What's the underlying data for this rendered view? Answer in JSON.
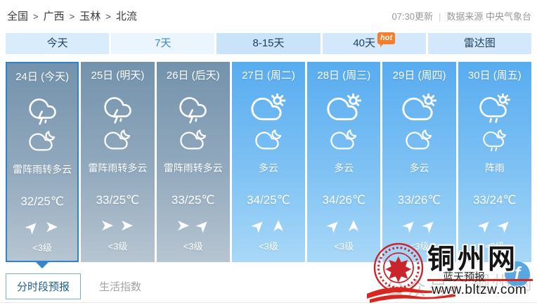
{
  "colors": {
    "tab_bg": "#d3e9fb",
    "tab_active_text": "#3f87c5",
    "column_gray_top": "#7392ac",
    "column_blue_top": "#58acf0",
    "selected_border": "#2f83c7",
    "hot_badge": "#f87d2a",
    "logo_red": "#d6281e",
    "button_border_blue": "#79b0d9"
  },
  "breadcrumb": {
    "separator": ">",
    "items": [
      "全国",
      "广西",
      "玉林",
      "北流"
    ]
  },
  "update_info": {
    "time": "07:30更新",
    "divider": "|",
    "source": "数据来源 中央气象台"
  },
  "tabs": [
    {
      "label": "今天"
    },
    {
      "label": "7天"
    },
    {
      "label": "8-15天"
    },
    {
      "label": "40天",
      "badge": "hot"
    },
    {
      "label": "雷达图"
    }
  ],
  "days": [
    {
      "date": "24日 (今天)",
      "day_icon": "thunderstorm",
      "night_icon": "cloud-moon",
      "weather": "雷阵雨转多云",
      "temp": "32/25℃",
      "wind_dirs": [
        "ne",
        "e"
      ],
      "wind_level": "<3级"
    },
    {
      "date": "25日 (明天)",
      "day_icon": "thunderstorm",
      "night_icon": "cloud-moon",
      "weather": "雷阵雨转多云",
      "temp": "33/25℃",
      "wind_dirs": [
        "e",
        "e"
      ],
      "wind_level": "<3级"
    },
    {
      "date": "26日 (后天)",
      "day_icon": "thunderstorm",
      "night_icon": "cloud-moon",
      "weather": "雷阵雨转多云",
      "temp": "33/25℃",
      "wind_dirs": [
        "e",
        "ne"
      ],
      "wind_level": "<3级"
    },
    {
      "date": "27日 (周二)",
      "day_icon": "cloud-sun",
      "night_icon": "cloud-moon",
      "weather": "多云",
      "temp": "34/25℃",
      "wind_dirs": [
        "ne",
        "n"
      ],
      "wind_level": "<3级"
    },
    {
      "date": "28日 (周三)",
      "day_icon": "cloud-sun",
      "night_icon": "cloud-moon",
      "weather": "多云",
      "temp": "34/26℃",
      "wind_dirs": [
        "ne",
        "n"
      ],
      "wind_level": "<3级"
    },
    {
      "date": "29日 (周四)",
      "day_icon": "cloud-sun",
      "night_icon": "cloud-moon",
      "weather": "多云",
      "temp": "33/26℃",
      "wind_dirs": [
        "ne",
        "ne"
      ],
      "wind_level": "<3级"
    },
    {
      "date": "30日 (周五)",
      "day_icon": "rain-sun",
      "night_icon": "rain-moon",
      "weather": "阵雨",
      "temp": "33/24℃",
      "wind_dirs": [
        "ne",
        "ne"
      ],
      "wind_level": "<3级"
    }
  ],
  "bottom_tabs": [
    {
      "label": "分时段预报"
    },
    {
      "label": "生活指数"
    }
  ],
  "watermark": {
    "site_name": "铜州网",
    "subtitle": "蓝天预报",
    "url": "www.bltzw.com",
    "faint_left": "公众号",
    "faint_right": "铜州网",
    "social_label": "f"
  }
}
